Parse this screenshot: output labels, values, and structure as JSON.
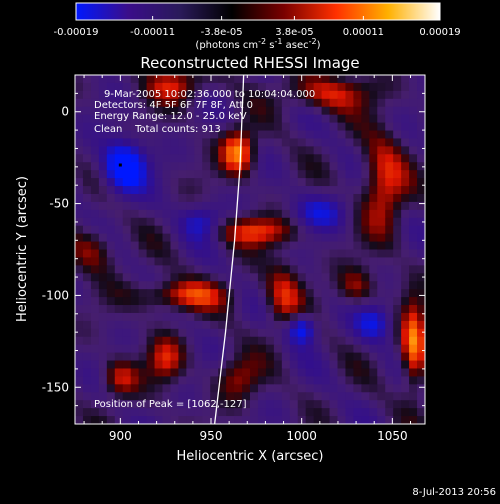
{
  "footer_timestamp": "8-Jul-2013 20:56",
  "colorbar": {
    "tick_labels": [
      "-0.00019",
      "-0.00011",
      "-3.8e-05",
      "3.8e-05",
      "0.00011",
      "0.00019"
    ],
    "tick_values": [
      -0.00019,
      -0.00011,
      -3.8e-05,
      3.8e-05,
      0.00011,
      0.00019
    ],
    "range": [
      -0.00019,
      0.00019
    ],
    "unit_label": "(photons cm",
    "unit_exp1": "-2",
    "unit_mid": " s",
    "unit_exp2": "-1",
    "unit_mid2": " asec",
    "unit_exp3": "-2",
    "unit_end": ")",
    "colors": [
      "#0018ff",
      "#3a0d8a",
      "#2a1a5a",
      "#000000",
      "#7a0000",
      "#ff3000",
      "#ffb000",
      "#ffffff"
    ]
  },
  "chart_data": {
    "type": "heatmap",
    "title": "Reconstructed RHESSI Image",
    "xlabel": "Heliocentric X (arcsec)",
    "ylabel": "Heliocentric Y (arcsec)",
    "xlim": [
      875,
      1068
    ],
    "ylim": [
      -170,
      20
    ],
    "x_ticks": [
      900,
      950,
      1000,
      1050
    ],
    "y_ticks": [
      0,
      -50,
      -100,
      -150
    ],
    "x_tick_labels": [
      "900",
      "950",
      "1000",
      "1050"
    ],
    "y_tick_labels": [
      "0",
      "-50",
      "-100",
      "-150"
    ],
    "annotations": [
      "9-Mar-2005 10:02:36.000 to 10:04:04.000",
      "Detectors: 4F 5F 6F 7F 8F, Att 0",
      "Energy Range: 12.0 - 25.0 keV",
      "Clean    Total counts: 913",
      "Position of Peak = [1062,-127]"
    ],
    "peak_position": [
      1062,
      -127
    ],
    "limb_curve": [
      [
        952,
        -170
      ],
      [
        958,
        -120
      ],
      [
        963,
        -70
      ],
      [
        966,
        -30
      ],
      [
        968,
        20
      ]
    ],
    "min_marker": [
      900,
      -29
    ],
    "blobs": [
      {
        "x": 902,
        "y": -30,
        "sx": 12,
        "sy": 14,
        "a": -1.0
      },
      {
        "x": 965,
        "y": -22,
        "sx": 9,
        "sy": 12,
        "a": 1.0
      },
      {
        "x": 930,
        "y": 15,
        "sx": 16,
        "sy": 10,
        "a": 0.6
      },
      {
        "x": 1015,
        "y": 10,
        "sx": 25,
        "sy": 10,
        "a": 0.6
      },
      {
        "x": 1045,
        "y": -40,
        "sx": 12,
        "sy": 28,
        "a": 0.7
      },
      {
        "x": 1010,
        "y": -55,
        "sx": 16,
        "sy": 10,
        "a": -0.5
      },
      {
        "x": 975,
        "y": -65,
        "sx": 22,
        "sy": 8,
        "a": 0.7
      },
      {
        "x": 1062,
        "y": -127,
        "sx": 7,
        "sy": 22,
        "a": 1.0
      },
      {
        "x": 935,
        "y": -100,
        "sx": 25,
        "sy": 8,
        "a": 0.7
      },
      {
        "x": 990,
        "y": -100,
        "sx": 10,
        "sy": 18,
        "a": 0.6
      },
      {
        "x": 1000,
        "y": -118,
        "sx": 8,
        "sy": 8,
        "a": -0.8
      },
      {
        "x": 925,
        "y": -135,
        "sx": 10,
        "sy": 12,
        "a": 0.6
      },
      {
        "x": 900,
        "y": -145,
        "sx": 10,
        "sy": 10,
        "a": 0.6
      },
      {
        "x": 965,
        "y": -145,
        "sx": 12,
        "sy": 12,
        "a": 0.5
      },
      {
        "x": 1040,
        "y": -115,
        "sx": 10,
        "sy": 10,
        "a": -0.6
      },
      {
        "x": 885,
        "y": -75,
        "sx": 12,
        "sy": 12,
        "a": 0.5
      },
      {
        "x": 1030,
        "y": -95,
        "sx": 10,
        "sy": 10,
        "a": 0.5
      },
      {
        "x": 945,
        "y": -60,
        "sx": 12,
        "sy": 10,
        "a": -0.5
      }
    ]
  }
}
